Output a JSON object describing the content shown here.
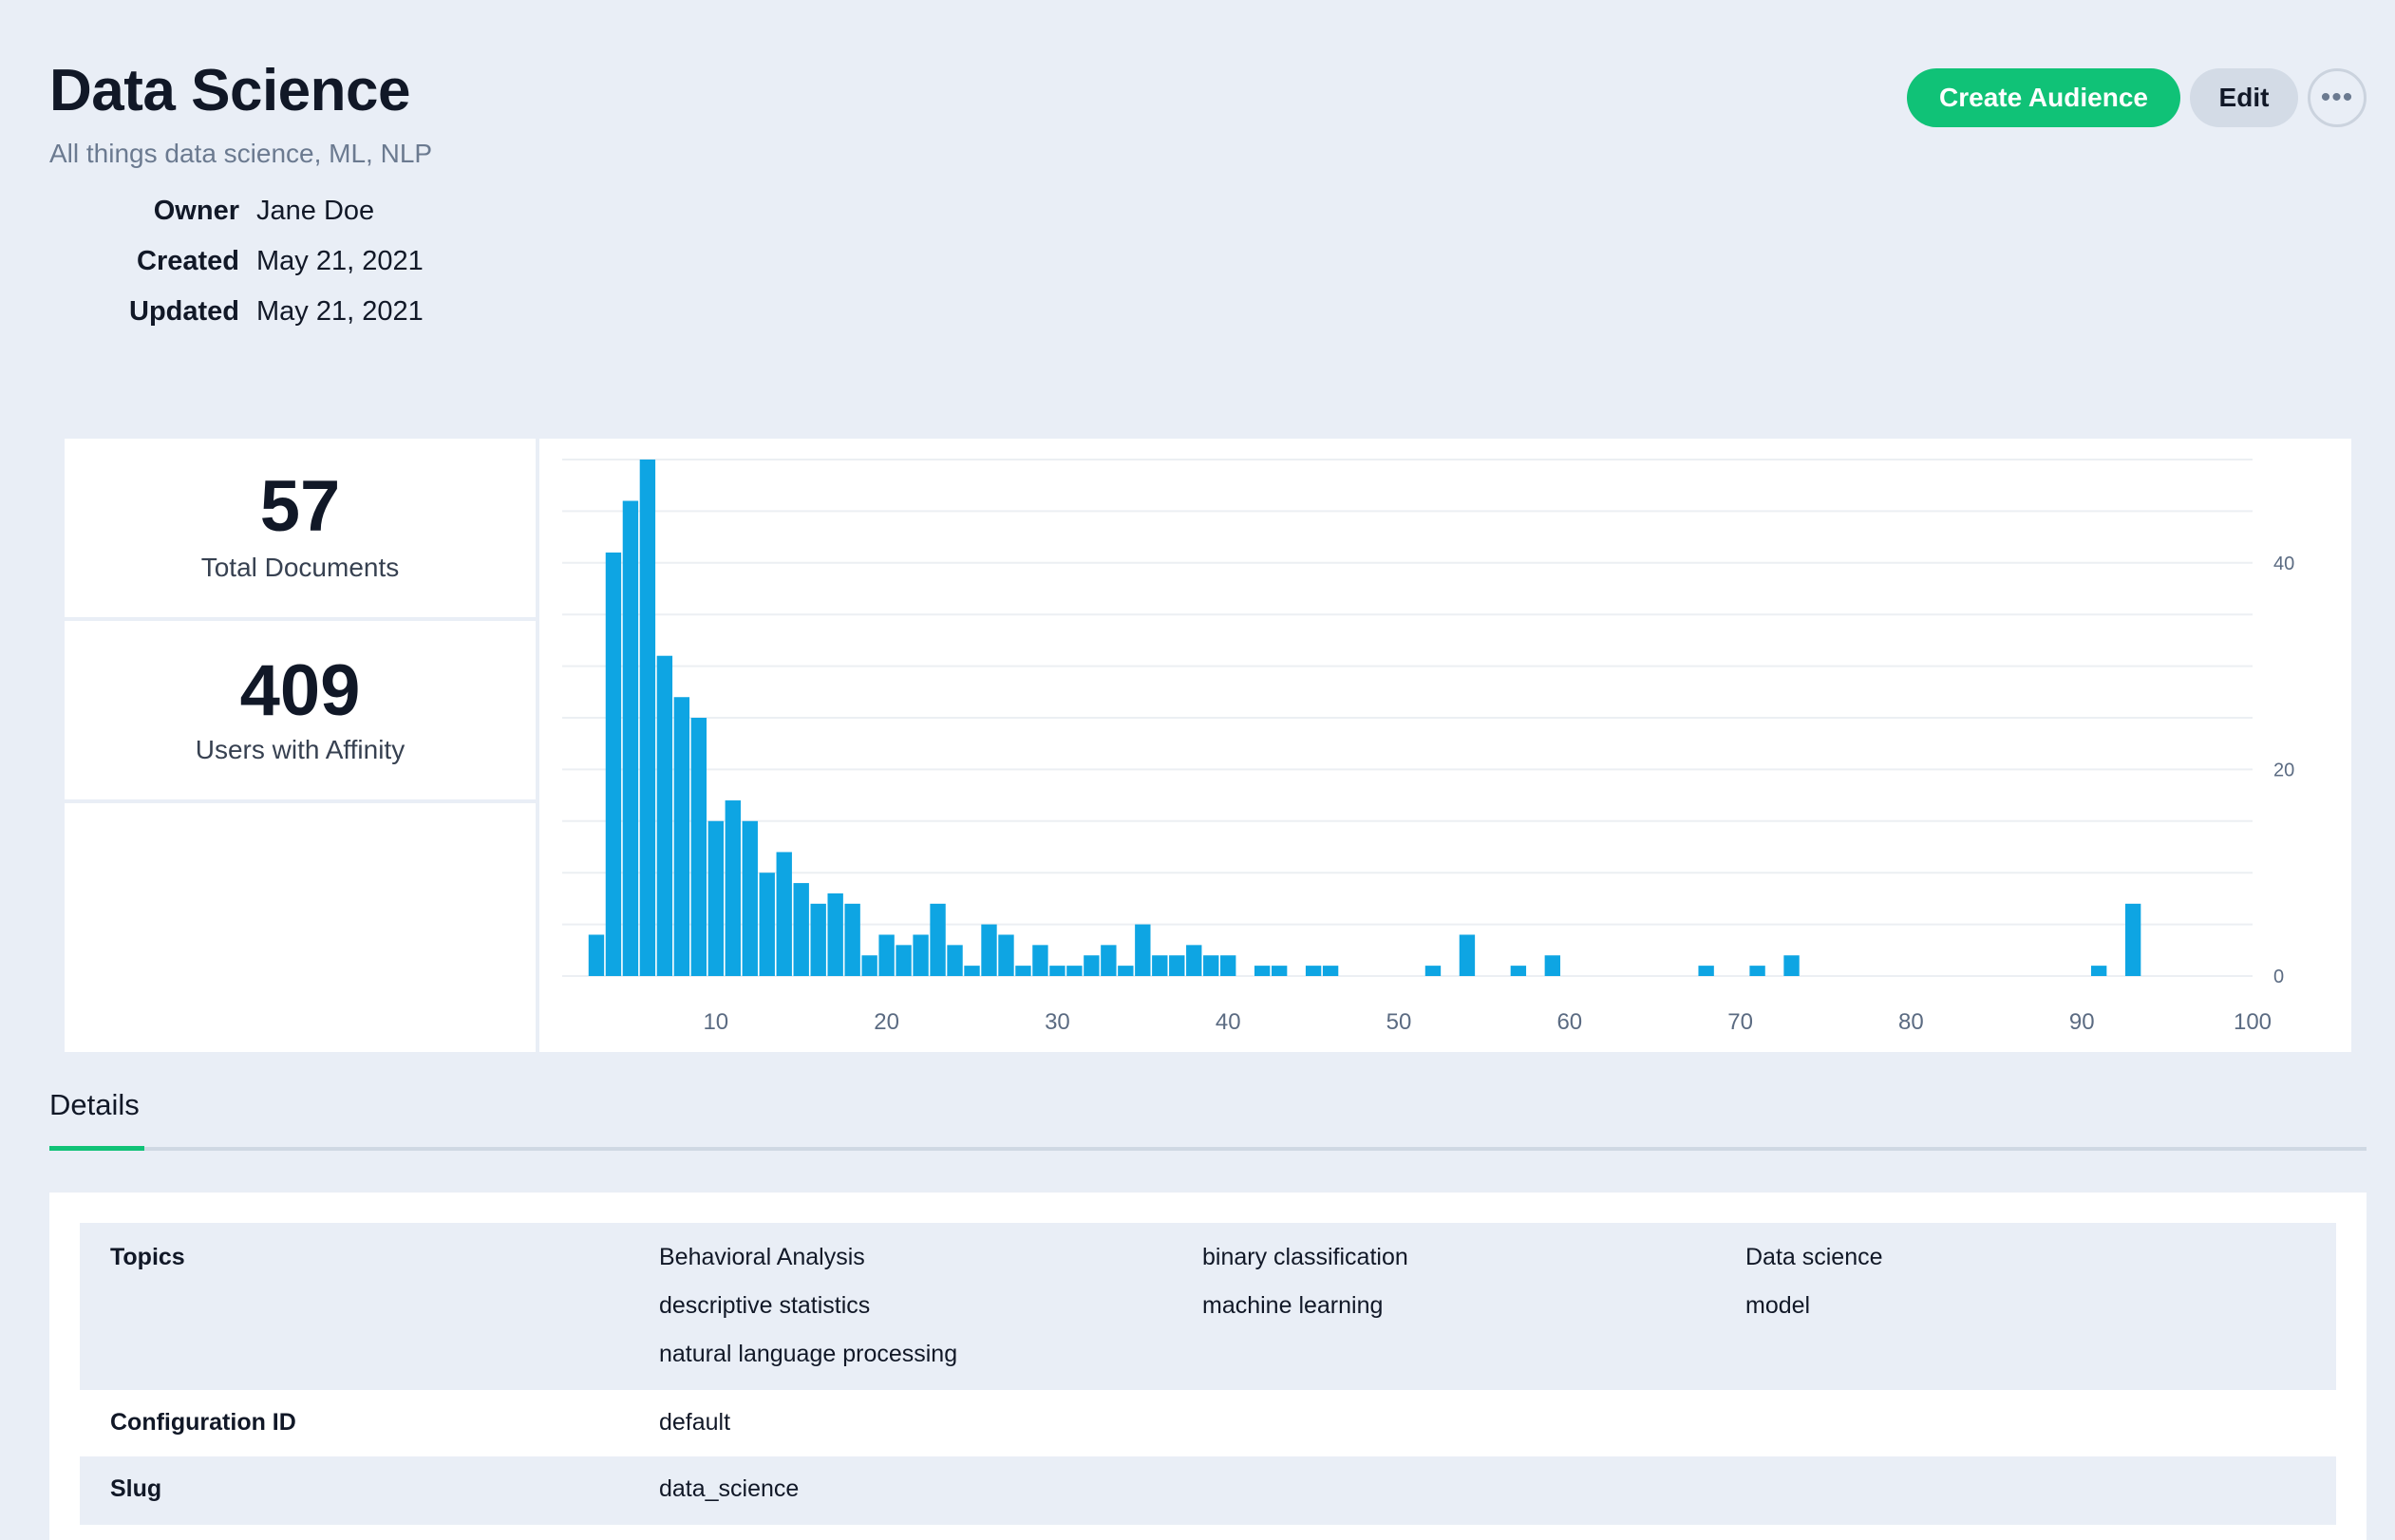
{
  "page": {
    "title": "Data Science",
    "subtitle": "All things data science, ML, NLP"
  },
  "meta": [
    {
      "label": "Owner",
      "value": "Jane Doe"
    },
    {
      "label": "Created",
      "value": "May 21, 2021"
    },
    {
      "label": "Updated",
      "value": "May 21, 2021"
    }
  ],
  "actions": {
    "create_audience": "Create Audience",
    "edit": "Edit",
    "more": "•••"
  },
  "stats": {
    "total_documents": {
      "value": "57",
      "label": "Total Documents"
    },
    "users_with_affinity": {
      "value": "409",
      "label": "Users with Affinity"
    }
  },
  "colors": {
    "accent": "#10c277",
    "bar": "#0ea5e3",
    "background": "#e9eef6"
  },
  "chart_data": {
    "type": "bar",
    "x_ticks": [
      10,
      20,
      30,
      40,
      50,
      60,
      70,
      80,
      90,
      100
    ],
    "y_ticks": [
      0,
      20,
      40
    ],
    "xlim": [
      1,
      100
    ],
    "ylim": [
      0,
      50
    ],
    "grid": true,
    "y_axis_side": "right",
    "bars": [
      {
        "x": 3,
        "y": 4
      },
      {
        "x": 4,
        "y": 41
      },
      {
        "x": 5,
        "y": 46
      },
      {
        "x": 6,
        "y": 50
      },
      {
        "x": 7,
        "y": 31
      },
      {
        "x": 8,
        "y": 27
      },
      {
        "x": 9,
        "y": 25
      },
      {
        "x": 10,
        "y": 15
      },
      {
        "x": 11,
        "y": 17
      },
      {
        "x": 12,
        "y": 15
      },
      {
        "x": 13,
        "y": 10
      },
      {
        "x": 14,
        "y": 12
      },
      {
        "x": 15,
        "y": 9
      },
      {
        "x": 16,
        "y": 7
      },
      {
        "x": 17,
        "y": 8
      },
      {
        "x": 18,
        "y": 7
      },
      {
        "x": 19,
        "y": 2
      },
      {
        "x": 20,
        "y": 4
      },
      {
        "x": 21,
        "y": 3
      },
      {
        "x": 22,
        "y": 4
      },
      {
        "x": 23,
        "y": 7
      },
      {
        "x": 24,
        "y": 3
      },
      {
        "x": 25,
        "y": 1
      },
      {
        "x": 26,
        "y": 5
      },
      {
        "x": 27,
        "y": 4
      },
      {
        "x": 28,
        "y": 1
      },
      {
        "x": 29,
        "y": 3
      },
      {
        "x": 30,
        "y": 1
      },
      {
        "x": 31,
        "y": 1
      },
      {
        "x": 32,
        "y": 2
      },
      {
        "x": 33,
        "y": 3
      },
      {
        "x": 34,
        "y": 1
      },
      {
        "x": 35,
        "y": 5
      },
      {
        "x": 36,
        "y": 2
      },
      {
        "x": 37,
        "y": 2
      },
      {
        "x": 38,
        "y": 3
      },
      {
        "x": 39,
        "y": 2
      },
      {
        "x": 40,
        "y": 2
      },
      {
        "x": 42,
        "y": 1
      },
      {
        "x": 43,
        "y": 1
      },
      {
        "x": 45,
        "y": 1
      },
      {
        "x": 46,
        "y": 1
      },
      {
        "x": 52,
        "y": 1
      },
      {
        "x": 54,
        "y": 4
      },
      {
        "x": 57,
        "y": 1
      },
      {
        "x": 59,
        "y": 2
      },
      {
        "x": 68,
        "y": 1
      },
      {
        "x": 71,
        "y": 1
      },
      {
        "x": 73,
        "y": 2
      },
      {
        "x": 91,
        "y": 1
      },
      {
        "x": 93,
        "y": 7
      }
    ]
  },
  "tabs": [
    {
      "label": "Details",
      "active": true
    }
  ],
  "details": {
    "topics_label": "Topics",
    "topics": [
      "Behavioral Analysis",
      "binary classification",
      "Data science",
      "descriptive statistics",
      "machine learning",
      "model",
      "natural language processing"
    ],
    "configuration_id_label": "Configuration ID",
    "configuration_id": "default",
    "slug_label": "Slug",
    "slug": "data_science"
  }
}
